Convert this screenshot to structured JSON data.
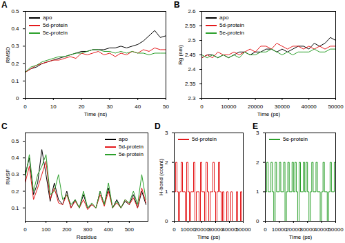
{
  "chart_data": [
    {
      "title": "A",
      "type": "line",
      "x_label": "Time (ns)",
      "y_label": "RMSD",
      "legend": "top-left",
      "x": [
        0,
        2,
        4,
        6,
        8,
        10,
        12,
        14,
        16,
        18,
        20,
        22,
        24,
        26,
        28,
        30,
        32,
        34,
        36,
        38,
        40,
        42,
        44,
        46,
        48,
        50
      ],
      "xlim": [
        0,
        50
      ],
      "xticks": [
        0,
        10,
        20,
        30,
        40,
        50
      ],
      "ylim": [
        0,
        0.5
      ],
      "yticks": [
        0,
        0.1,
        0.2,
        0.3,
        0.4,
        0.5
      ],
      "series": [
        {
          "name": "apo",
          "color": "#000000",
          "values": [
            0.15,
            0.17,
            0.18,
            0.2,
            0.21,
            0.22,
            0.23,
            0.24,
            0.25,
            0.26,
            0.27,
            0.27,
            0.28,
            0.28,
            0.28,
            0.29,
            0.29,
            0.3,
            0.29,
            0.3,
            0.31,
            0.33,
            0.36,
            0.39,
            0.35,
            0.36
          ]
        },
        {
          "name": "5d-protein",
          "color": "#e41a1c",
          "values": [
            0.15,
            0.17,
            0.19,
            0.2,
            0.21,
            0.22,
            0.22,
            0.23,
            0.24,
            0.23,
            0.26,
            0.25,
            0.26,
            0.27,
            0.25,
            0.26,
            0.24,
            0.26,
            0.25,
            0.27,
            0.26,
            0.28,
            0.27,
            0.29,
            0.28,
            0.28
          ]
        },
        {
          "name": "5e-protein",
          "color": "#2ca02c",
          "values": [
            0.15,
            0.18,
            0.19,
            0.21,
            0.22,
            0.23,
            0.24,
            0.24,
            0.25,
            0.26,
            0.26,
            0.27,
            0.28,
            0.28,
            0.27,
            0.27,
            0.26,
            0.27,
            0.26,
            0.27,
            0.26,
            0.26,
            0.25,
            0.26,
            0.26,
            0.26
          ]
        }
      ]
    },
    {
      "title": "B",
      "type": "line",
      "x_label": "Time (ps)",
      "y_label": "Rg (nm)",
      "legend": "top-left",
      "x": [
        0,
        2000,
        4000,
        6000,
        8000,
        10000,
        12000,
        14000,
        16000,
        18000,
        20000,
        22000,
        24000,
        26000,
        28000,
        30000,
        32000,
        34000,
        36000,
        38000,
        40000,
        42000,
        44000,
        46000,
        48000,
        50000
      ],
      "xlim": [
        0,
        50000
      ],
      "xticks": [
        0,
        10000,
        20000,
        30000,
        40000,
        50000
      ],
      "ylim": [
        2.3,
        2.6
      ],
      "yticks": [
        2.3,
        2.35,
        2.4,
        2.45,
        2.5,
        2.55,
        2.6
      ],
      "series": [
        {
          "name": "apo",
          "color": "#000000",
          "values": [
            2.44,
            2.45,
            2.45,
            2.44,
            2.45,
            2.44,
            2.45,
            2.46,
            2.46,
            2.45,
            2.46,
            2.46,
            2.47,
            2.47,
            2.46,
            2.47,
            2.46,
            2.47,
            2.48,
            2.48,
            2.47,
            2.49,
            2.48,
            2.49,
            2.51,
            2.5
          ]
        },
        {
          "name": "5d-protein",
          "color": "#e41a1c",
          "values": [
            2.44,
            2.45,
            2.44,
            2.46,
            2.45,
            2.45,
            2.46,
            2.45,
            2.46,
            2.47,
            2.46,
            2.48,
            2.48,
            2.47,
            2.49,
            2.48,
            2.47,
            2.48,
            2.48,
            2.47,
            2.48,
            2.47,
            2.48,
            2.47,
            2.48,
            2.48
          ]
        },
        {
          "name": "5e-protein",
          "color": "#2ca02c",
          "values": [
            2.45,
            2.44,
            2.45,
            2.44,
            2.45,
            2.44,
            2.45,
            2.44,
            2.46,
            2.45,
            2.45,
            2.46,
            2.46,
            2.47,
            2.46,
            2.45,
            2.46,
            2.45,
            2.46,
            2.46,
            2.46,
            2.47,
            2.46,
            2.46,
            2.47,
            2.47
          ]
        }
      ]
    },
    {
      "title": "C",
      "type": "line",
      "x_label": "Residue",
      "y_label": "RMSF",
      "legend": "top-right",
      "x": [
        0,
        20,
        40,
        60,
        80,
        100,
        120,
        140,
        160,
        180,
        200,
        220,
        240,
        260,
        280,
        300,
        320,
        340,
        360,
        380,
        400,
        420,
        440,
        460,
        480,
        500,
        520,
        540,
        560,
        580
      ],
      "xlim": [
        0,
        590
      ],
      "xticks": [
        0,
        100,
        200,
        300,
        400,
        500
      ],
      "ylim": [
        0.02,
        0.55
      ],
      "yticks": [
        0.1,
        0.2,
        0.3,
        0.4,
        0.5
      ],
      "series": [
        {
          "name": "apo",
          "color": "#000000",
          "values": [
            0.3,
            0.4,
            0.18,
            0.25,
            0.45,
            0.3,
            0.14,
            0.25,
            0.15,
            0.12,
            0.2,
            0.1,
            0.15,
            0.1,
            0.18,
            0.1,
            0.12,
            0.1,
            0.2,
            0.12,
            0.22,
            0.1,
            0.15,
            0.1,
            0.14,
            0.12,
            0.18,
            0.1,
            0.2,
            0.12
          ]
        },
        {
          "name": "5d-protein",
          "color": "#e41a1c",
          "values": [
            0.25,
            0.35,
            0.15,
            0.22,
            0.3,
            0.38,
            0.15,
            0.22,
            0.13,
            0.12,
            0.18,
            0.1,
            0.14,
            0.1,
            0.15,
            0.09,
            0.12,
            0.1,
            0.18,
            0.11,
            0.2,
            0.1,
            0.13,
            0.1,
            0.15,
            0.12,
            0.16,
            0.1,
            0.22,
            0.13
          ]
        },
        {
          "name": "5e-protein",
          "color": "#2ca02c",
          "values": [
            0.28,
            0.42,
            0.2,
            0.3,
            0.35,
            0.42,
            0.18,
            0.2,
            0.3,
            0.15,
            0.18,
            0.12,
            0.15,
            0.1,
            0.2,
            0.1,
            0.13,
            0.1,
            0.2,
            0.12,
            0.25,
            0.1,
            0.14,
            0.1,
            0.15,
            0.13,
            0.2,
            0.12,
            0.3,
            0.15
          ]
        }
      ]
    },
    {
      "title": "D",
      "type": "step",
      "x_label": "Time (ps)",
      "y_label": "H-bond (count)",
      "legend": "top-left",
      "x": [
        0,
        1000,
        2000,
        3000,
        4000,
        5000,
        6000,
        7000,
        8000,
        9000,
        10000,
        11000,
        12000,
        13000,
        14000,
        15000,
        16000,
        17000,
        18000,
        19000,
        20000,
        21000,
        22000,
        23000,
        24000,
        25000,
        26000,
        27000,
        28000,
        29000,
        30000,
        31000,
        32000,
        33000,
        34000,
        35000,
        36000,
        37000,
        38000,
        39000,
        40000,
        41000,
        42000,
        43000,
        44000,
        45000,
        46000,
        47000,
        48000,
        49000,
        50000
      ],
      "xlim": [
        0,
        50000
      ],
      "xticks": [
        0,
        10000,
        20000,
        30000,
        40000,
        50000
      ],
      "ylim": [
        0,
        3
      ],
      "yticks": [
        0,
        1,
        2,
        3
      ],
      "series": [
        {
          "name": "5d-protein",
          "color": "#e41a1c",
          "values": [
            1,
            2,
            1,
            0,
            1,
            2,
            1,
            1,
            0,
            2,
            1,
            0,
            1,
            1,
            2,
            0,
            1,
            1,
            0,
            2,
            1,
            1,
            0,
            2,
            1,
            0,
            1,
            1,
            2,
            1,
            0,
            1,
            2,
            1,
            0,
            1,
            0,
            0,
            1,
            0,
            0,
            1,
            0,
            0,
            0,
            1,
            0,
            0,
            1,
            0,
            0
          ]
        }
      ]
    },
    {
      "title": "E",
      "type": "step",
      "x_label": "Time (ps)",
      "legend": "top-left",
      "x": [
        0,
        1000,
        2000,
        3000,
        4000,
        5000,
        6000,
        7000,
        8000,
        9000,
        10000,
        11000,
        12000,
        13000,
        14000,
        15000,
        16000,
        17000,
        18000,
        19000,
        20000,
        21000,
        22000,
        23000,
        24000,
        25000,
        26000,
        27000,
        28000,
        29000,
        30000,
        31000,
        32000,
        33000,
        34000,
        35000,
        36000,
        37000,
        38000,
        39000,
        40000,
        41000,
        42000,
        43000,
        44000,
        45000,
        46000,
        47000,
        48000,
        49000,
        50000
      ],
      "xlim": [
        0,
        50000
      ],
      "xticks": [
        0,
        10000,
        20000,
        30000,
        40000,
        50000
      ],
      "ylim": [
        0,
        3
      ],
      "yticks": [
        0,
        1,
        2,
        3
      ],
      "series": [
        {
          "name": "5e-protein",
          "color": "#2ca02c",
          "values": [
            1,
            2,
            1,
            1,
            2,
            1,
            0,
            2,
            1,
            1,
            2,
            1,
            1,
            2,
            0,
            1,
            2,
            1,
            1,
            2,
            1,
            2,
            1,
            0,
            2,
            1,
            1,
            2,
            1,
            2,
            1,
            0,
            1,
            2,
            1,
            1,
            2,
            1,
            1,
            0,
            1,
            2,
            1,
            1,
            0,
            1,
            2,
            1,
            1,
            2,
            1
          ]
        }
      ]
    }
  ]
}
